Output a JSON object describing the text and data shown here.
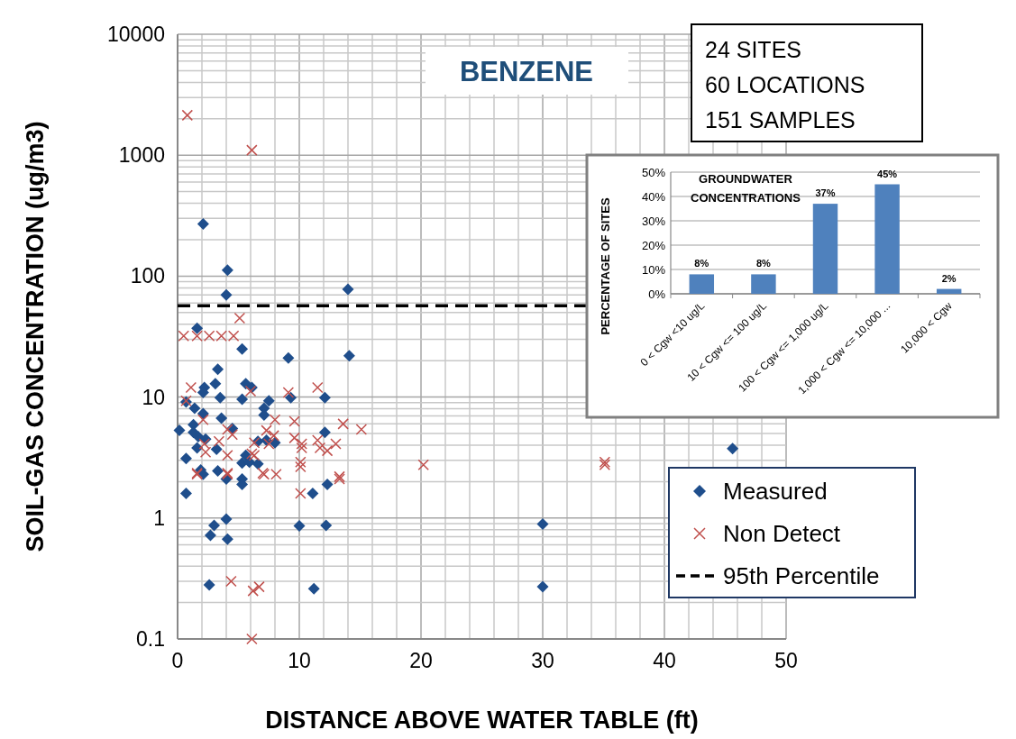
{
  "chart_data": [
    {
      "type": "scatter",
      "xlabel": "DISTANCE ABOVE WATER TABLE (ft)",
      "ylabel": "SOIL-GAS CONCENTRATION  (ug/m3)",
      "log": "y",
      "grid": true,
      "legend": "bottom right",
      "annotations": [
        "BENZENE",
        "24  SITES",
        "60 LOCATIONS",
        "151 SAMPLES"
      ],
      "xlim": [
        0,
        50
      ],
      "xticks": [
        0,
        {
          "value": 2,
          "label": null
        },
        {
          "value": 4,
          "label": null
        },
        {
          "value": 6,
          "label": null
        },
        {
          "value": 8,
          "label": null
        },
        10,
        {
          "value": 12,
          "label": null
        },
        {
          "value": 14,
          "label": null
        },
        {
          "value": 16,
          "label": null
        },
        {
          "value": 18,
          "label": null
        },
        20,
        {
          "value": 22,
          "label": null
        },
        {
          "value": 24,
          "label": null
        },
        {
          "value": 26,
          "label": null
        },
        {
          "value": 28,
          "label": null
        },
        30,
        {
          "value": 32,
          "label": null
        },
        {
          "value": 34,
          "label": null
        },
        {
          "value": 36,
          "label": null
        },
        {
          "value": 38,
          "label": null
        },
        40,
        {
          "value": 42,
          "label": null
        },
        {
          "value": 44,
          "label": null
        },
        {
          "value": 46,
          "label": null
        },
        {
          "value": 48,
          "label": null
        },
        50
      ],
      "ylim": [
        0.1,
        10000
      ],
      "yticks": [
        0.1,
        {
          "value": 0.2,
          "label": null
        },
        {
          "value": 0.3,
          "label": null
        },
        {
          "value": 0.4,
          "label": null
        },
        {
          "value": 0.5,
          "label": null
        },
        {
          "value": 0.6,
          "label": null
        },
        {
          "value": 0.7,
          "label": null
        },
        {
          "value": 0.8,
          "label": null
        },
        {
          "value": 0.9,
          "label": null
        },
        1,
        {
          "value": 2,
          "label": null
        },
        {
          "value": 3,
          "label": null
        },
        {
          "value": 4,
          "label": null
        },
        {
          "value": 5,
          "label": null
        },
        {
          "value": 6,
          "label": null
        },
        {
          "value": 7,
          "label": null
        },
        {
          "value": 8,
          "label": null
        },
        {
          "value": 9,
          "label": null
        },
        10,
        {
          "value": 20,
          "label": null
        },
        {
          "value": 30,
          "label": null
        },
        {
          "value": 40,
          "label": null
        },
        {
          "value": 50,
          "label": null
        },
        {
          "value": 60,
          "label": null
        },
        {
          "value": 70,
          "label": null
        },
        {
          "value": 80,
          "label": null
        },
        {
          "value": 90,
          "label": null
        },
        100,
        {
          "value": 200,
          "label": null
        },
        {
          "value": 300,
          "label": null
        },
        {
          "value": 400,
          "label": null
        },
        {
          "value": 500,
          "label": null
        },
        {
          "value": 600,
          "label": null
        },
        {
          "value": 700,
          "label": null
        },
        {
          "value": 800,
          "label": null
        },
        {
          "value": 900,
          "label": null
        },
        1000,
        {
          "value": 2000,
          "label": null
        },
        {
          "value": 3000,
          "label": null
        },
        {
          "value": 4000,
          "label": null
        },
        {
          "value": 5000,
          "label": null
        },
        {
          "value": 6000,
          "label": null
        },
        {
          "value": 7000,
          "label": null
        },
        {
          "value": 8000,
          "label": null
        },
        {
          "value": 9000,
          "label": null
        },
        10000
      ],
      "ref_lines": [
        {
          "axis": "y",
          "value": 57,
          "label": "95th Percentile",
          "color": "#000000",
          "line_style": "dashed"
        }
      ],
      "series": [
        {
          "name": "Measured",
          "color": "#1f4e8c",
          "marker": "diamond",
          "x": [
            2.1,
            4.1,
            4.0,
            14.0,
            14.1,
            1.6,
            3.3,
            5.3,
            9.1,
            2.2,
            2.1,
            3.1,
            5.6,
            6.1,
            3.5,
            5.3,
            9.3,
            12.1,
            0.7,
            1.4,
            7.5,
            7.1,
            7.1,
            2.1,
            3.6,
            1.3,
            0.15,
            1.3,
            1.7,
            4.5,
            12.1,
            2.3,
            1.6,
            6.6,
            7.3,
            8.0,
            3.2,
            0.7,
            5.6,
            5.3,
            5.9,
            6.6,
            1.9,
            3.3,
            2.1,
            4.0,
            5.3,
            5.3,
            0.7,
            11.1,
            12.3,
            4.0,
            3.0,
            2.7,
            4.1,
            10.0,
            12.2,
            2.6,
            11.2,
            30.0,
            30.0,
            45.6
          ],
          "values": [
            270,
            112,
            70,
            78,
            22,
            37,
            17,
            25,
            21,
            12,
            10.9,
            12.9,
            12.9,
            12,
            9.9,
            9.6,
            9.9,
            9.9,
            9.1,
            8.1,
            9.3,
            8.1,
            7.1,
            7.3,
            6.7,
            5.9,
            5.3,
            5.1,
            4.7,
            5.5,
            5.1,
            4.5,
            3.8,
            4.3,
            4.4,
            4.2,
            3.7,
            3.1,
            3.3,
            2.85,
            2.9,
            2.8,
            2.5,
            2.45,
            2.3,
            2.1,
            2.1,
            1.9,
            1.6,
            1.6,
            1.9,
            0.98,
            0.87,
            0.72,
            0.67,
            0.86,
            0.87,
            0.28,
            0.26,
            0.89,
            0.27,
            3.75
          ]
        },
        {
          "name": "Non Detect",
          "color": "#c0504d",
          "marker": "cross",
          "x": [
            0.8,
            6.1,
            5.1,
            0.5,
            1.6,
            2.6,
            3.6,
            4.6,
            1.1,
            6.0,
            9.1,
            11.5,
            0.7,
            8.0,
            9.6,
            13.6,
            15.1,
            2.1,
            4.1,
            4.5,
            7.3,
            7.9,
            9.6,
            6.3,
            7.5,
            10.2,
            11.5,
            13.0,
            10.2,
            11.7,
            12.3,
            2.2,
            2.3,
            3.4,
            4.1,
            6.1,
            10.1,
            7.0,
            13.3,
            1.6,
            4.1,
            6.3,
            10.1,
            1.6,
            4.1,
            7.1,
            8.1,
            13.3,
            10.1,
            4.4,
            6.2,
            6.7,
            6.1,
            20.2,
            35.1,
            35.1
          ],
          "values": [
            2140,
            1100,
            45,
            32,
            32,
            32,
            32,
            32,
            12,
            11.2,
            10.9,
            12,
            9.3,
            6.5,
            6.3,
            6.0,
            5.4,
            6.5,
            5.4,
            4.9,
            5.3,
            4.8,
            4.6,
            4.2,
            4.1,
            4.1,
            4.4,
            4.1,
            3.8,
            3.8,
            3.6,
            4.1,
            3.5,
            4.3,
            3.3,
            3.4,
            2.9,
            2.35,
            2.2,
            2.35,
            2.35,
            3.3,
            2.65,
            2.3,
            2.3,
            2.3,
            2.3,
            2.1,
            1.6,
            0.3,
            0.25,
            0.27,
            0.1,
            2.75,
            2.9,
            2.75
          ]
        }
      ]
    },
    {
      "type": "bar",
      "title": "GROUNDWATER CONCENTRATIONS",
      "ylabel": "PERCENTAGE OF SITES",
      "grid": "y",
      "categories": [
        "0 < Cgw <10 ug/L",
        "10 < Cgw <= 100 ug/L",
        "100 < Cgw <= 1,000 ug/L",
        "1,000 < Cgw <= 10,000 ...",
        "10,000 < Cgw"
      ],
      "values": [
        8,
        8,
        37,
        45,
        2
      ],
      "value_labels": [
        "8%",
        "8%",
        "37%",
        "45%",
        "2%"
      ],
      "color": "#4f81bd",
      "ylim": [
        0,
        50
      ],
      "yticks": [
        {
          "value": 0,
          "label": "0%"
        },
        {
          "value": 10,
          "label": "10%"
        },
        {
          "value": 20,
          "label": "20%"
        },
        {
          "value": 30,
          "label": "30%"
        },
        {
          "value": 40,
          "label": "40%"
        },
        {
          "value": 50,
          "label": "50%"
        }
      ]
    }
  ]
}
